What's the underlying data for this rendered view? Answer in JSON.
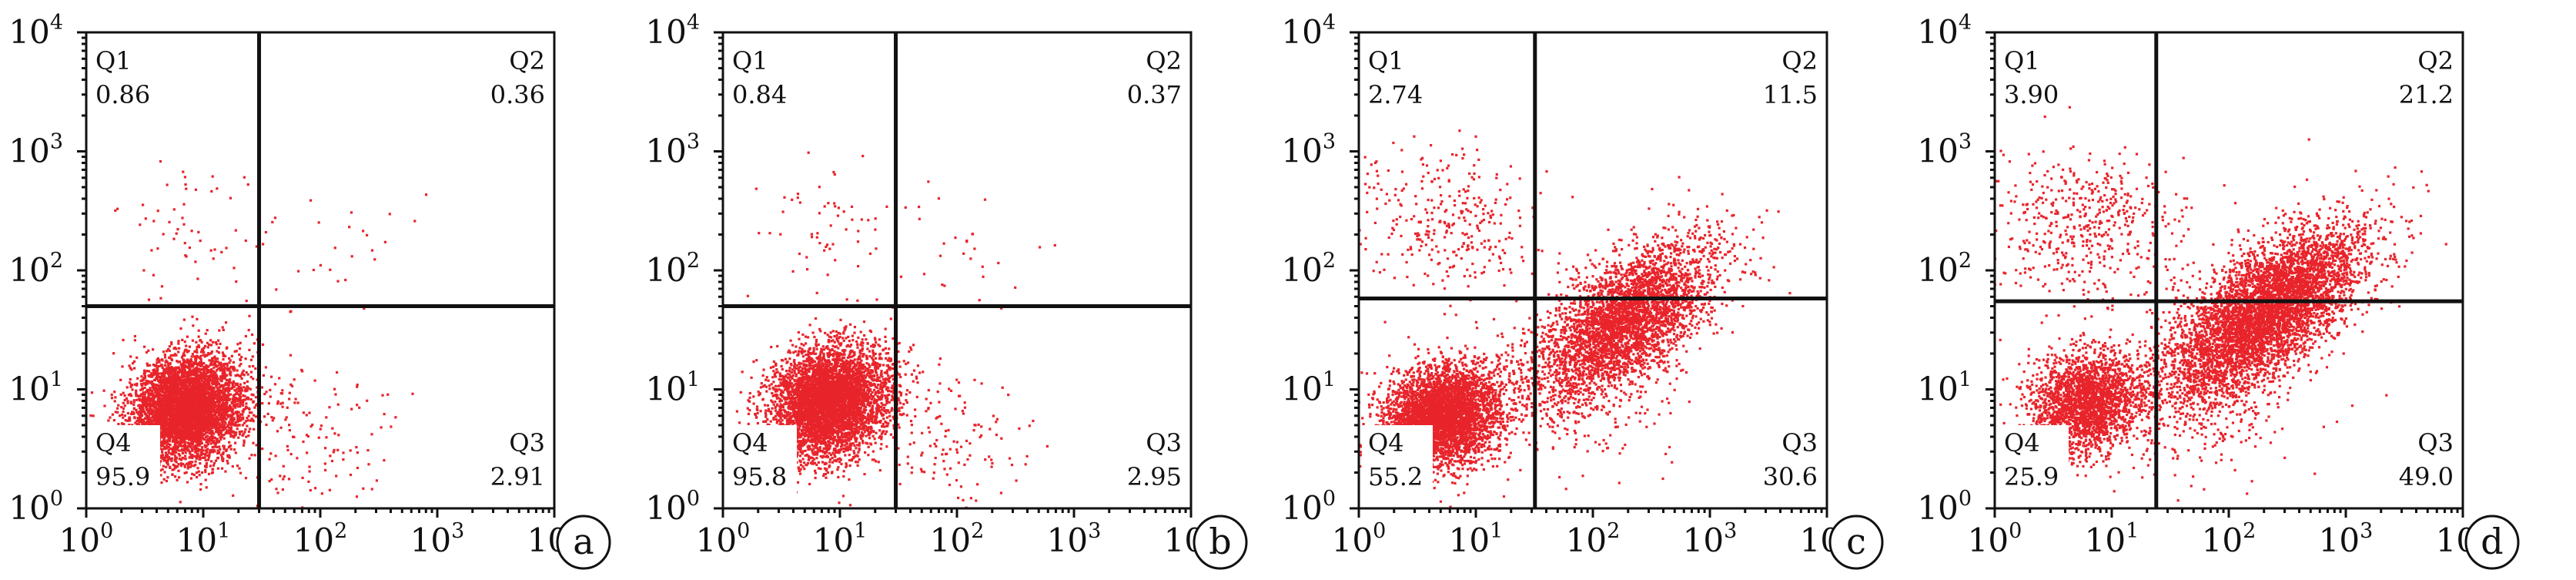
{
  "chart_data": [
    {
      "type": "scatter",
      "panel_label": "a",
      "axis_scale": "log",
      "xlim": [
        1,
        10000
      ],
      "ylim": [
        1,
        10000
      ],
      "x_ticks": [
        {
          "base": "10",
          "exp": "0"
        },
        {
          "base": "10",
          "exp": "1"
        },
        {
          "base": "10",
          "exp": "2"
        },
        {
          "base": "10",
          "exp": "3"
        },
        {
          "base": "10",
          "exp": "4"
        }
      ],
      "y_ticks": [
        {
          "base": "10",
          "exp": "0"
        },
        {
          "base": "10",
          "exp": "1"
        },
        {
          "base": "10",
          "exp": "2"
        },
        {
          "base": "10",
          "exp": "3"
        },
        {
          "base": "10",
          "exp": "4"
        }
      ],
      "gate": {
        "x": 30,
        "y": 50
      },
      "quadrants": [
        {
          "name": "Q1",
          "value": "0.86"
        },
        {
          "name": "Q2",
          "value": "0.36"
        },
        {
          "name": "Q3",
          "value": "2.91"
        },
        {
          "name": "Q4",
          "value": "95.9"
        }
      ],
      "color": "#e8242b",
      "populations": [
        {
          "center": [
            7,
            7
          ],
          "spread": [
            0.26,
            0.21
          ],
          "rot": 0.6,
          "n": 5000
        },
        {
          "center": [
            80,
            4
          ],
          "spread": [
            0.35,
            0.3
          ],
          "rot": 0,
          "n": 140
        },
        {
          "center": [
            8,
            250
          ],
          "spread": [
            0.35,
            0.3
          ],
          "rot": 0,
          "n": 60
        },
        {
          "center": [
            120,
            150
          ],
          "spread": [
            0.35,
            0.3
          ],
          "rot": 0,
          "n": 25
        }
      ]
    },
    {
      "type": "scatter",
      "panel_label": "b",
      "axis_scale": "log",
      "xlim": [
        1,
        10000
      ],
      "ylim": [
        1,
        10000
      ],
      "x_ticks": [
        {
          "base": "10",
          "exp": "0"
        },
        {
          "base": "10",
          "exp": "1"
        },
        {
          "base": "10",
          "exp": "2"
        },
        {
          "base": "10",
          "exp": "3"
        },
        {
          "base": "10",
          "exp": "4"
        }
      ],
      "y_ticks": [
        {
          "base": "10",
          "exp": "0"
        },
        {
          "base": "10",
          "exp": "1"
        },
        {
          "base": "10",
          "exp": "2"
        },
        {
          "base": "10",
          "exp": "3"
        },
        {
          "base": "10",
          "exp": "4"
        }
      ],
      "gate": {
        "x": 30,
        "y": 50
      },
      "quadrants": [
        {
          "name": "Q1",
          "value": "0.84"
        },
        {
          "name": "Q2",
          "value": "0.37"
        },
        {
          "name": "Q3",
          "value": "2.95"
        },
        {
          "name": "Q4",
          "value": "95.8"
        }
      ],
      "color": "#e8242b",
      "populations": [
        {
          "center": [
            8,
            8
          ],
          "spread": [
            0.26,
            0.21
          ],
          "rot": 0.6,
          "n": 5000
        },
        {
          "center": [
            80,
            4
          ],
          "spread": [
            0.35,
            0.3
          ],
          "rot": 0,
          "n": 140
        },
        {
          "center": [
            8,
            250
          ],
          "spread": [
            0.35,
            0.3
          ],
          "rot": 0,
          "n": 60
        },
        {
          "center": [
            120,
            150
          ],
          "spread": [
            0.35,
            0.3
          ],
          "rot": 0,
          "n": 25
        }
      ]
    },
    {
      "type": "scatter",
      "panel_label": "c",
      "axis_scale": "log",
      "xlim": [
        1,
        10000
      ],
      "ylim": [
        1,
        10000
      ],
      "x_ticks": [
        {
          "base": "10",
          "exp": "0"
        },
        {
          "base": "10",
          "exp": "1"
        },
        {
          "base": "10",
          "exp": "2"
        },
        {
          "base": "10",
          "exp": "3"
        },
        {
          "base": "10",
          "exp": "4"
        }
      ],
      "y_ticks": [
        {
          "base": "10",
          "exp": "0"
        },
        {
          "base": "10",
          "exp": "1"
        },
        {
          "base": "10",
          "exp": "2"
        },
        {
          "base": "10",
          "exp": "3"
        },
        {
          "base": "10",
          "exp": "4"
        }
      ],
      "gate": {
        "x": 32,
        "y": 58
      },
      "quadrants": [
        {
          "name": "Q1",
          "value": "2.74"
        },
        {
          "name": "Q2",
          "value": "11.5"
        },
        {
          "name": "Q3",
          "value": "30.6"
        },
        {
          "name": "Q4",
          "value": "55.2"
        }
      ],
      "color": "#e8242b",
      "populations": [
        {
          "center": [
            5,
            6
          ],
          "spread": [
            0.26,
            0.2
          ],
          "rot": 0.4,
          "n": 4200
        },
        {
          "center": [
            190,
            40
          ],
          "spread": [
            0.22,
            0.45
          ],
          "rot": -0.9,
          "n": 3600
        },
        {
          "center": [
            5,
            250
          ],
          "spread": [
            0.4,
            0.3
          ],
          "rot": 0,
          "n": 330
        },
        {
          "center": [
            60,
            10
          ],
          "spread": [
            0.4,
            0.35
          ],
          "rot": 0,
          "n": 300
        }
      ]
    },
    {
      "type": "scatter",
      "panel_label": "d",
      "axis_scale": "log",
      "xlim": [
        1,
        10000
      ],
      "ylim": [
        1,
        10000
      ],
      "x_ticks": [
        {
          "base": "10",
          "exp": "0"
        },
        {
          "base": "10",
          "exp": "1"
        },
        {
          "base": "10",
          "exp": "2"
        },
        {
          "base": "10",
          "exp": "3"
        },
        {
          "base": "10",
          "exp": "4"
        }
      ],
      "y_ticks": [
        {
          "base": "10",
          "exp": "0"
        },
        {
          "base": "10",
          "exp": "1"
        },
        {
          "base": "10",
          "exp": "2"
        },
        {
          "base": "10",
          "exp": "3"
        },
        {
          "base": "10",
          "exp": "4"
        }
      ],
      "gate": {
        "x": 24,
        "y": 55
      },
      "quadrants": [
        {
          "name": "Q1",
          "value": "3.90"
        },
        {
          "name": "Q2",
          "value": "21.2"
        },
        {
          "name": "Q3",
          "value": "49.0"
        },
        {
          "name": "Q4",
          "value": "25.9"
        }
      ],
      "color": "#e8242b",
      "populations": [
        {
          "center": [
            6,
            8
          ],
          "spread": [
            0.24,
            0.2
          ],
          "rot": 0.4,
          "n": 2300
        },
        {
          "center": [
            200,
            45
          ],
          "spread": [
            0.22,
            0.5
          ],
          "rot": -0.9,
          "n": 5200
        },
        {
          "center": [
            6,
            250
          ],
          "spread": [
            0.4,
            0.3
          ],
          "rot": 0,
          "n": 500
        },
        {
          "center": [
            60,
            10
          ],
          "spread": [
            0.4,
            0.35
          ],
          "rot": 0,
          "n": 350
        }
      ]
    }
  ]
}
